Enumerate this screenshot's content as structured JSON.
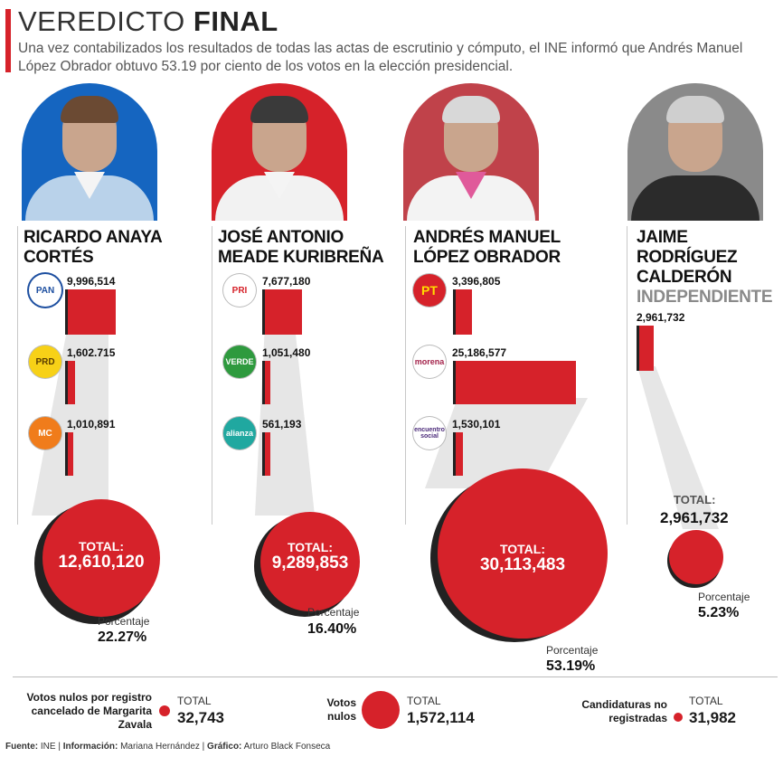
{
  "header": {
    "title_light": "VEREDICTO ",
    "title_bold": "FINAL",
    "subtitle": "Una vez contabilizados los resultados de todas las actas de escrutinio y cómputo, el INE informó que Andrés Manuel López Obrador obtuvo 53.19 por ciento de los votos en la elección presidencial."
  },
  "chart_data": {
    "type": "bar",
    "title": "VEREDICTO FINAL",
    "candidates": [
      {
        "name_line1": "RICARDO ANAYA",
        "name_line2": "CORTÉS",
        "portrait_color": "#1565c0",
        "parties": [
          {
            "logo": "PAN",
            "value": 9996514,
            "label": "9,996,514"
          },
          {
            "logo": "PRD",
            "value": 1602715,
            "label": "1,602.715"
          },
          {
            "logo": "MC",
            "value": 1010891,
            "label": "1,010,891"
          }
        ],
        "total_label": "TOTAL:",
        "total": "12,610,120",
        "pct_label": "Porcentaje",
        "pct": "22.27%"
      },
      {
        "name_line1": "JOSÉ ANTONIO",
        "name_line2": "MEADE KURIBREÑA",
        "portrait_color": "#d6222a",
        "parties": [
          {
            "logo": "PRI",
            "value": 7677180,
            "label": "7,677,180"
          },
          {
            "logo": "VERDE",
            "value": 1051480,
            "label": "1,051,480"
          },
          {
            "logo": "alianza",
            "value": 561193,
            "label": "561,193"
          }
        ],
        "total_label": "TOTAL:",
        "total": "9,289,853",
        "pct_label": "Porcentaje",
        "pct": "16.40%"
      },
      {
        "name_line1": "ANDRÉS MANUEL",
        "name_line2": "LÓPEZ OBRADOR",
        "portrait_color": "#c0424a",
        "parties": [
          {
            "logo": "PT",
            "value": 3396805,
            "label": "3,396,805"
          },
          {
            "logo": "morena",
            "value": 25186577,
            "label": "25,186,577"
          },
          {
            "logo": "encuentro social",
            "value": 1530101,
            "label": "1,530,101"
          }
        ],
        "total_label": "TOTAL:",
        "total": "30,113,483",
        "pct_label": "Porcentaje",
        "pct": "53.19%"
      },
      {
        "name_line1": "JAIME",
        "name_line2": "RODRÍGUEZ",
        "name_line3": "CALDERÓN",
        "party_label": "INDEPENDIENTE",
        "portrait_color": "#8a8a8a",
        "parties": [
          {
            "logo": "",
            "value": 2961732,
            "label": "2,961,732"
          }
        ],
        "total_label": "TOTAL:",
        "total": "2,961,732",
        "pct_label": "Porcentaje",
        "pct": "5.23%"
      }
    ],
    "others": [
      {
        "label": "Votos nulos por registro cancelado de Margarita Zavala",
        "total_label": "TOTAL",
        "total": "32,743"
      },
      {
        "label": "Votos nulos",
        "total_label": "TOTAL",
        "total": "1,572,114"
      },
      {
        "label": "Candidaturas no registradas",
        "total_label": "TOTAL",
        "total": "31,982"
      }
    ]
  },
  "footer": {
    "fuente_label": "Fuente:",
    "fuente": "INE",
    "info_label": "Información:",
    "info": "Mariana Hernández",
    "grafico_label": "Gráfico:",
    "grafico": "Arturo Black Fonseca"
  },
  "colors": {
    "accent": "#d6222a",
    "dark": "#222222",
    "funnel": "#e6e6e6"
  }
}
